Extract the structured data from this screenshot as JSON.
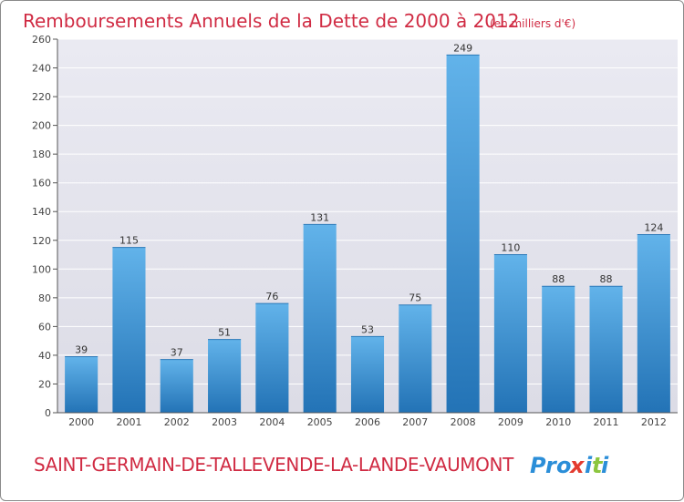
{
  "header": {
    "title": "Remboursements Annuels de la Dette de 2000 à 2012",
    "unit": "(en milliers d'€)"
  },
  "footer": {
    "commune": "SAINT-GERMAIN-DE-TALLEVENDE-LA-LANDE-VAUMONT",
    "brand": "Proxiti",
    "brand_colors": [
      "#2b8ed8",
      "#2b8ed8",
      "#2b8ed8",
      "#e33b2f",
      "#2b8ed8",
      "#8cc63f",
      "#2b8ed8"
    ]
  },
  "colors": {
    "accent": "#d02b43",
    "bar_top": "#62b3ea",
    "bar_bottom": "#2373b6",
    "plot_background": "#e3e3eb",
    "grid": "#ffffff"
  },
  "chart_data": {
    "type": "bar",
    "title": "Remboursements Annuels de la Dette de 2000 à 2012",
    "subtitle": "(en milliers d'€)",
    "categories": [
      "2000",
      "2001",
      "2002",
      "2003",
      "2004",
      "2005",
      "2006",
      "2007",
      "2008",
      "2009",
      "2010",
      "2011",
      "2012"
    ],
    "values": [
      39,
      115,
      37,
      51,
      76,
      131,
      53,
      75,
      249,
      110,
      88,
      88,
      124
    ],
    "xlabel": "",
    "ylabel": "",
    "ylim": [
      0,
      260
    ],
    "yticks": [
      0,
      20,
      40,
      60,
      80,
      100,
      120,
      140,
      160,
      180,
      200,
      220,
      240,
      260
    ],
    "grid": true,
    "legend": "none",
    "data_labels": true
  }
}
